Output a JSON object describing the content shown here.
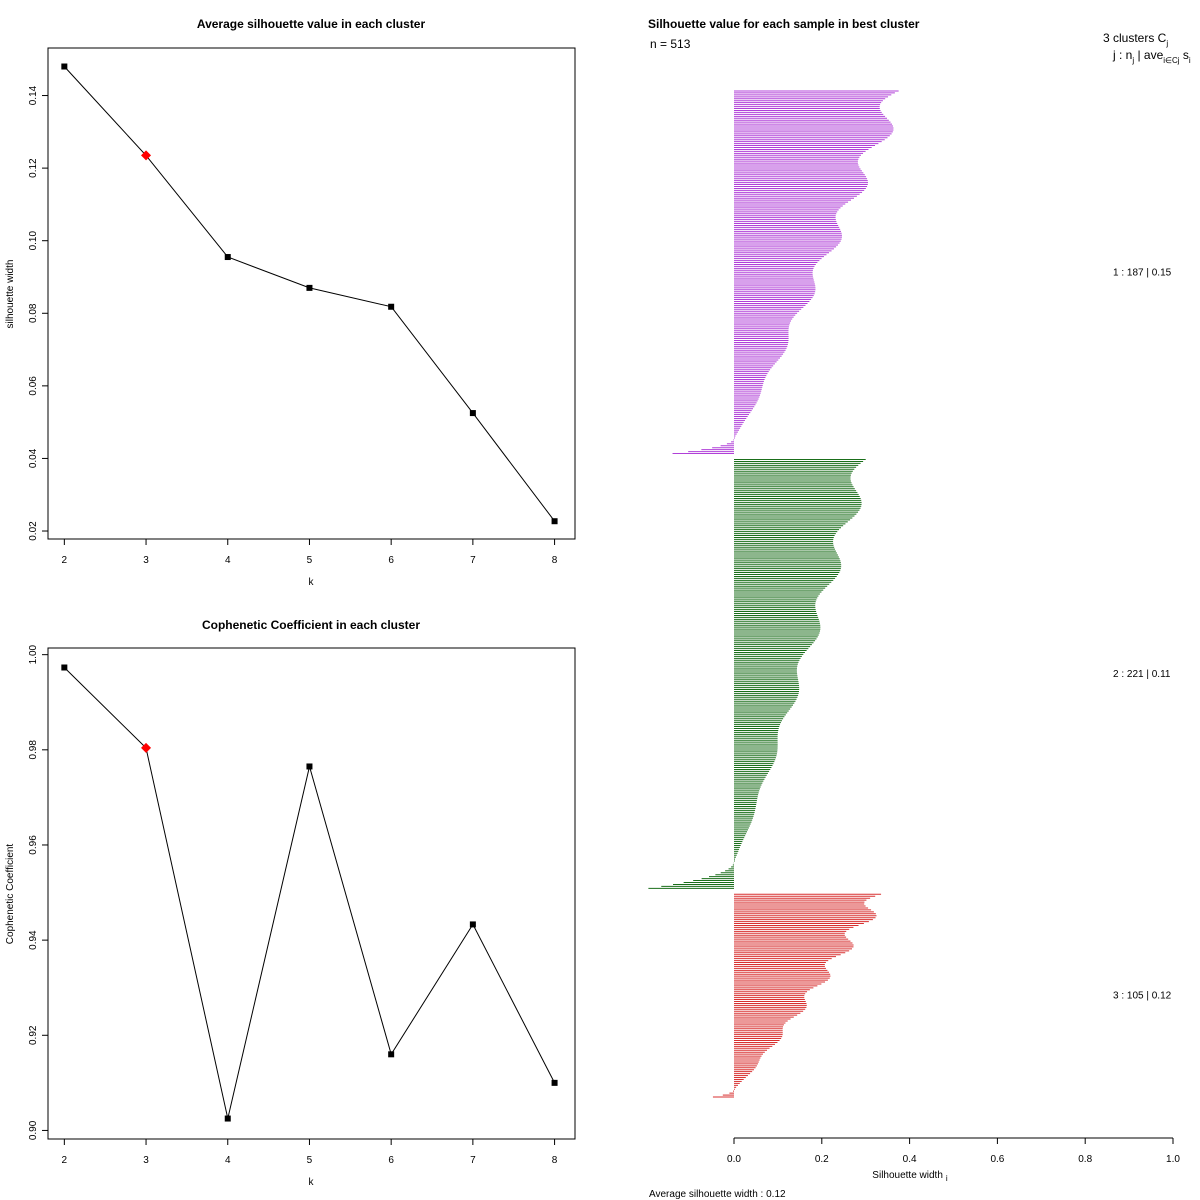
{
  "chart_data": [
    {
      "type": "line",
      "title": "Average silhouette value in each cluster",
      "xlabel": "k",
      "ylabel": "silhouette width",
      "x": [
        2,
        3,
        4,
        5,
        6,
        7,
        8
      ],
      "values": [
        0.148,
        0.1235,
        0.0955,
        0.087,
        0.0818,
        0.0525,
        0.0227
      ],
      "highlight_index": 1,
      "highlight_color": "#ff0000",
      "point_color": "#000000",
      "xticks": [
        "2",
        "3",
        "4",
        "5",
        "6",
        "7",
        "8"
      ],
      "yticks": [
        "0.02",
        "0.04",
        "0.06",
        "0.08",
        "0.10",
        "0.12",
        "0.14"
      ],
      "xlim": [
        1.8,
        8.25
      ],
      "ylim": [
        0.0178,
        0.1531
      ],
      "grid": false
    },
    {
      "type": "line",
      "title": "Cophenetic Coefficient in each cluster",
      "xlabel": "k",
      "ylabel": "Cophenetic Coefficient",
      "x": [
        2,
        3,
        4,
        5,
        6,
        7,
        8
      ],
      "values": [
        0.9973,
        0.9804,
        0.9025,
        0.9765,
        0.916,
        0.9433,
        0.91
      ],
      "highlight_index": 1,
      "highlight_color": "#ff0000",
      "point_color": "#000000",
      "xticks": [
        "2",
        "3",
        "4",
        "5",
        "6",
        "7",
        "8"
      ],
      "yticks": [
        "0.90",
        "0.92",
        "0.94",
        "0.96",
        "0.98",
        "1.00"
      ],
      "xlim": [
        1.8,
        8.25
      ],
      "ylim": [
        0.8982,
        1.0014
      ],
      "grid": false
    },
    {
      "type": "bar",
      "orientation": "horizontal",
      "title": "Silhouette value for each sample in best cluster",
      "n_label": "n = 513",
      "xlabel": "Silhouette width",
      "xlabel_sub": "i",
      "xticks": [
        "0.0",
        "0.2",
        "0.4",
        "0.6",
        "0.8",
        "1.0"
      ],
      "xlim": [
        -0.19,
        1.0
      ],
      "legend_head": "3  clusters  C",
      "legend_head_sub": "j",
      "legend_line": "j :  n",
      "legend_line_sub": "j",
      "legend_line_rest": " | ave",
      "legend_line_sub2": "i∈Cj",
      "legend_line_s": "  s",
      "legend_line_s_sub": "i",
      "footer": "Average silhouette width :  0.12",
      "clusters": [
        {
          "id": 1,
          "label": "1 :   187  |  0.15",
          "n": 187,
          "avg": 0.15,
          "color": "#b040d8",
          "max": 0.375,
          "min_neg": -0.14,
          "neg_count": 8
        },
        {
          "id": 2,
          "label": "2 :   221  |  0.11",
          "n": 221,
          "avg": 0.11,
          "color": "#1a6e1a",
          "max": 0.3,
          "min_neg": -0.195,
          "neg_count": 14
        },
        {
          "id": 3,
          "label": "3 :   105  |  0.12",
          "n": 105,
          "avg": 0.12,
          "color": "#d83030",
          "max": 0.335,
          "min_neg": -0.048,
          "neg_count": 4
        }
      ]
    }
  ]
}
